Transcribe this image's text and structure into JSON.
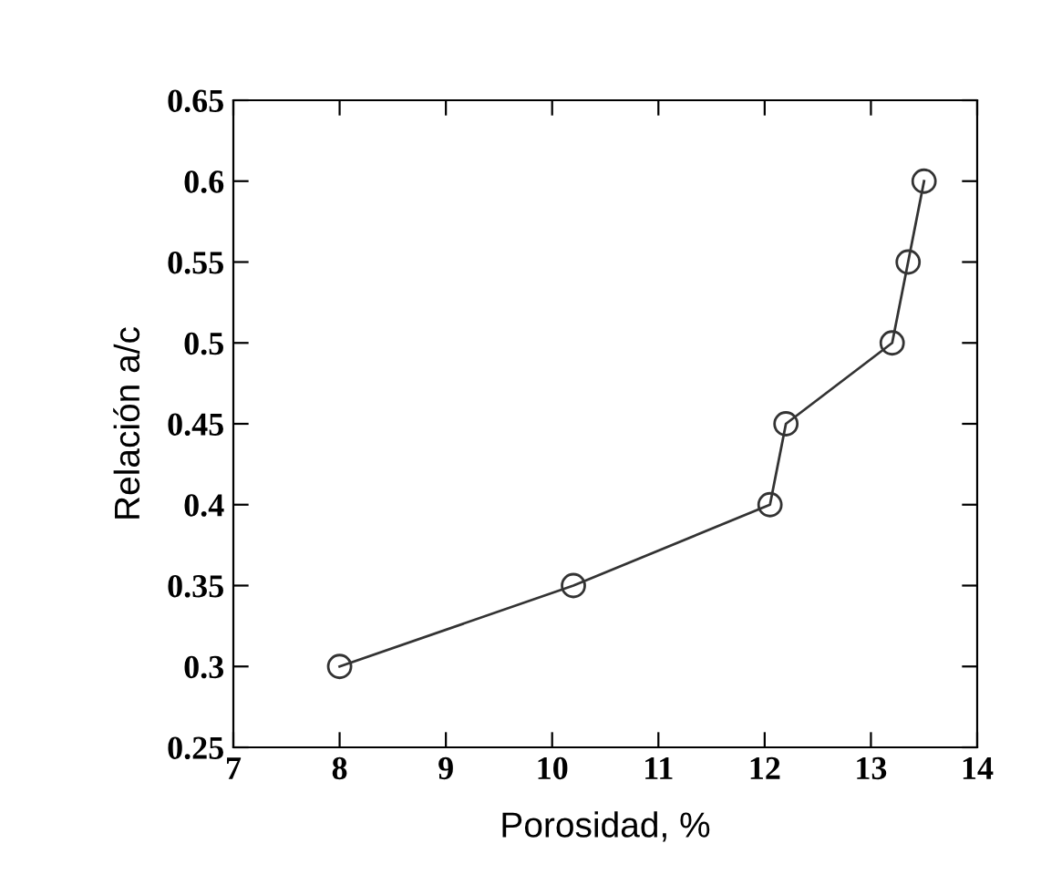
{
  "chart_data": {
    "type": "line",
    "xlabel": "Porosidad, %",
    "ylabel": "Relación a/c",
    "x": [
      8,
      10.2,
      12.05,
      12.2,
      13.2,
      13.35,
      13.5
    ],
    "series": [
      {
        "color": "#333333",
        "values": [
          0.3,
          0.35,
          0.4,
          0.45,
          0.5,
          0.55,
          0.6
        ]
      }
    ],
    "xlim": [
      7,
      14
    ],
    "xticks": [
      7,
      8,
      9,
      10,
      11,
      12,
      13,
      14
    ],
    "ylim": [
      0.25,
      0.65
    ],
    "yticks": [
      0.25,
      0.3,
      0.35,
      0.4,
      0.45,
      0.5,
      0.55,
      0.6,
      0.65
    ],
    "marker": "circle",
    "line_style": "solid",
    "grid": false,
    "legend": false
  }
}
